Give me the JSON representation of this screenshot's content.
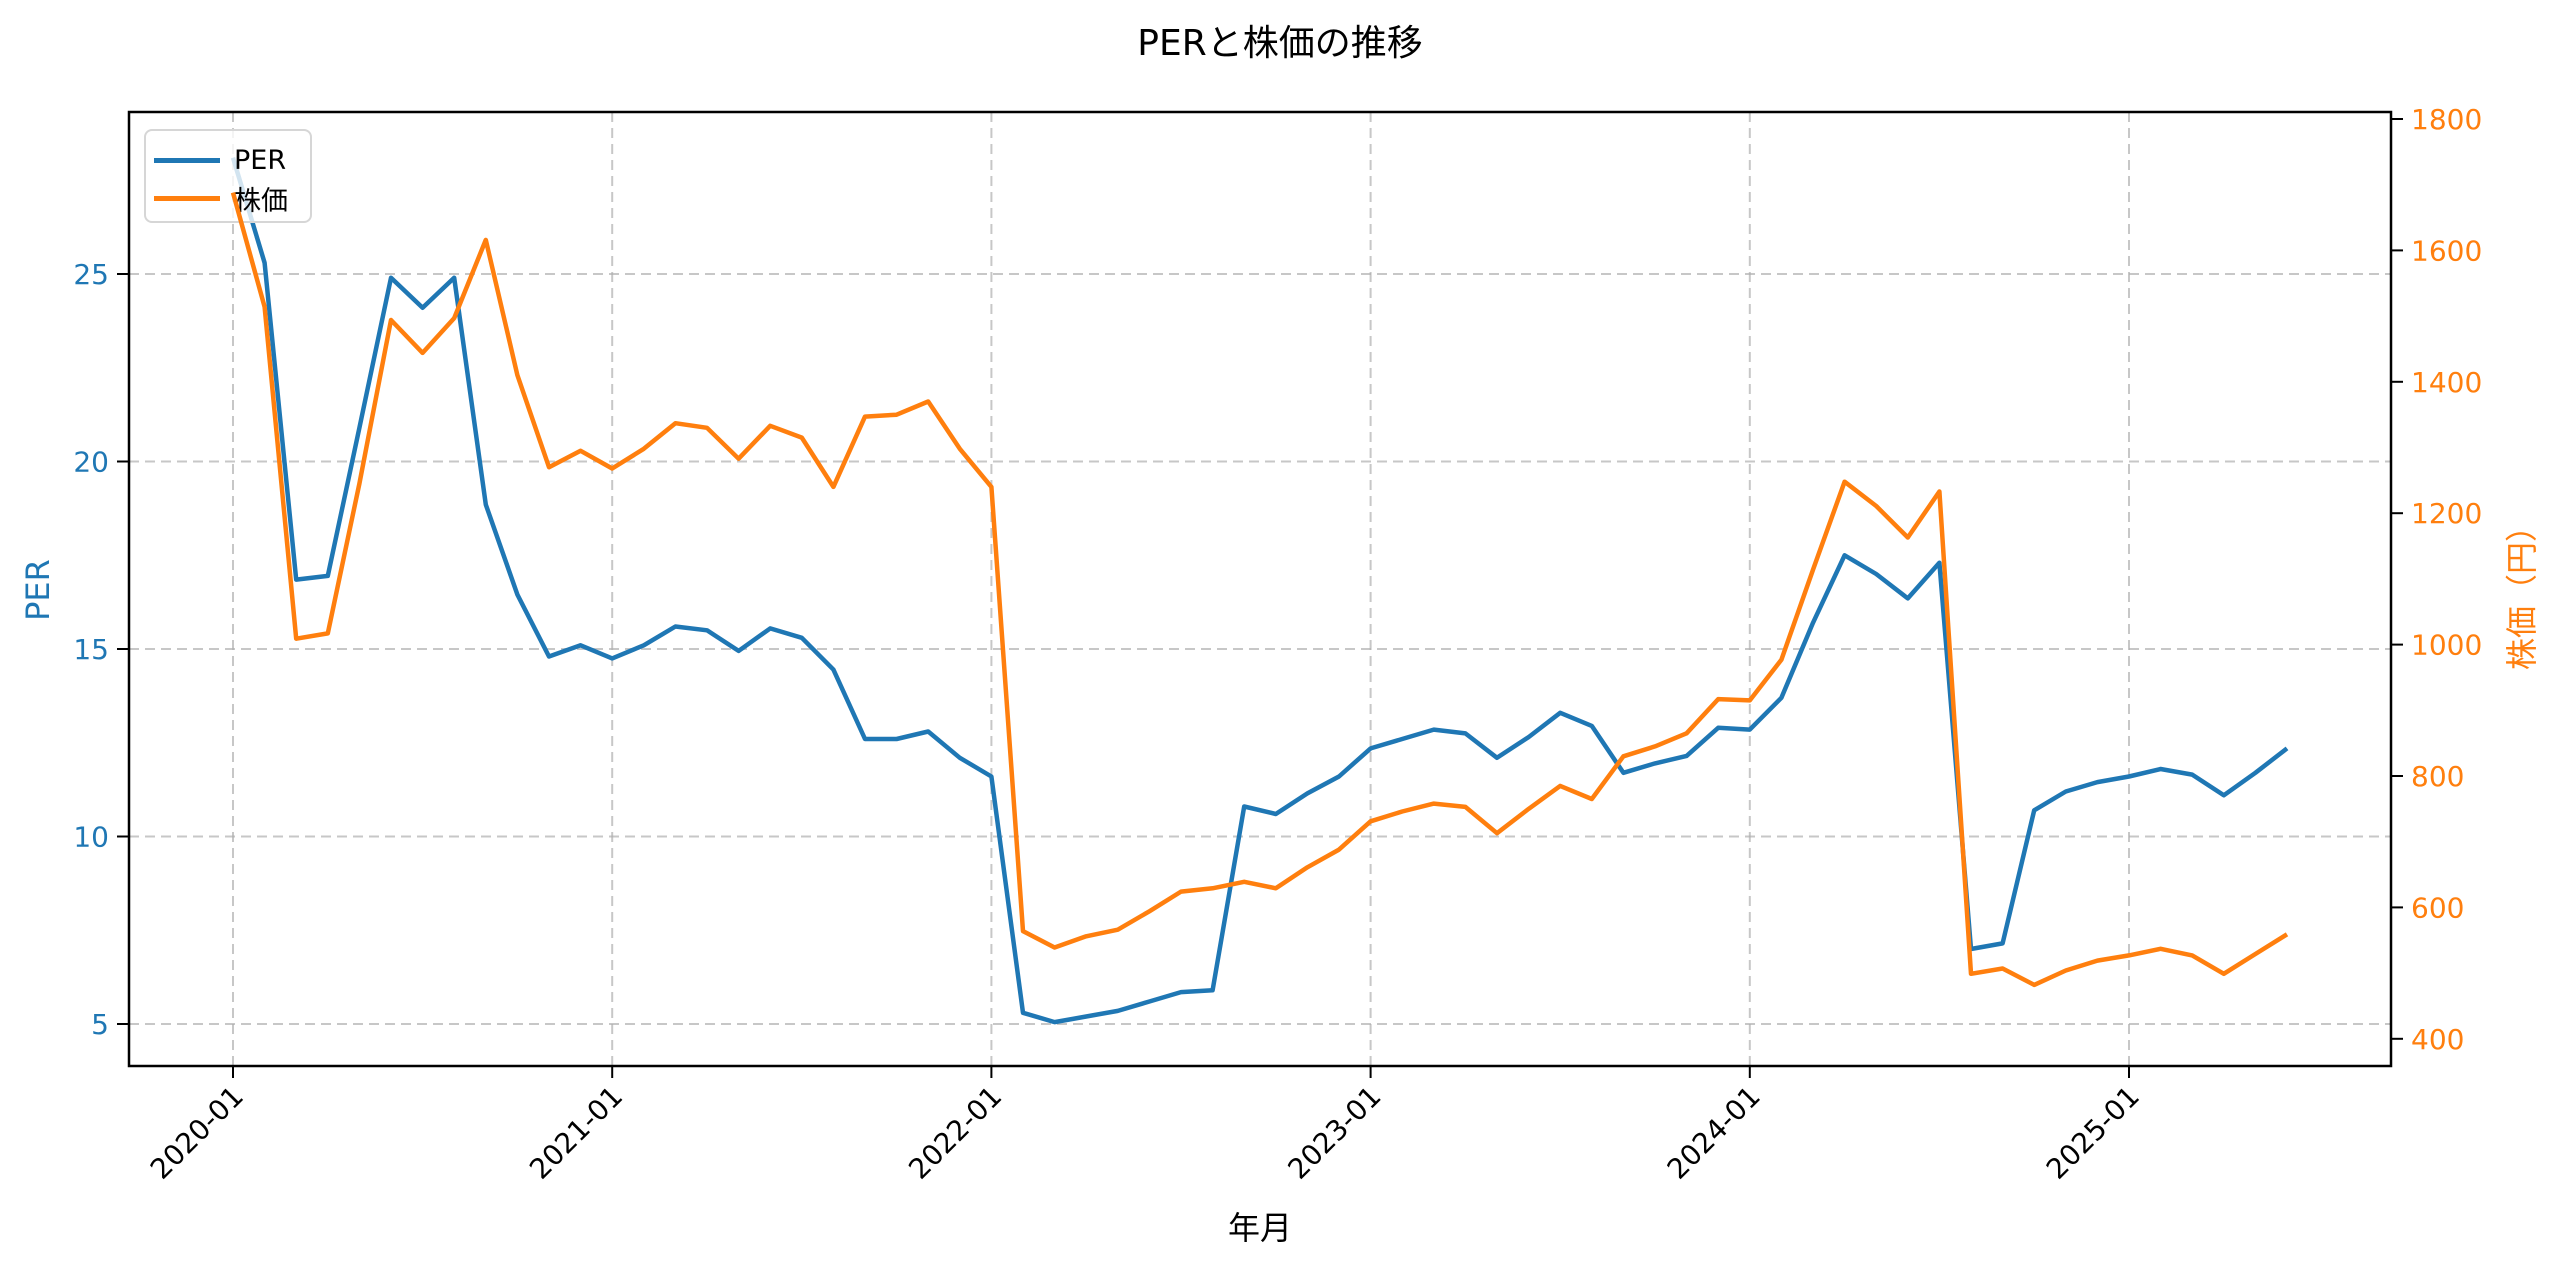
{
  "chart_data": {
    "type": "line",
    "title": "PERと株価の推移",
    "xlabel": "年月",
    "ylabel_left": "PER",
    "ylabel_right": "株価（円）",
    "x_tick_labels": [
      "2020-01",
      "2021-01",
      "2022-01",
      "2023-01",
      "2024-01",
      "2025-01"
    ],
    "y_left_ticks": [
      5,
      10,
      15,
      20,
      25
    ],
    "y_right_ticks": [
      400,
      600,
      800,
      1000,
      1200,
      1400,
      1600,
      1800
    ],
    "y_left_range": [
      3.88,
      29.32
    ],
    "y_right_range": [
      358.6,
      1810.7
    ],
    "grid": true,
    "legend_position": "upper left",
    "x": [
      "2020-01",
      "2020-02",
      "2020-03",
      "2020-04",
      "2020-05",
      "2020-06",
      "2020-07",
      "2020-08",
      "2020-09",
      "2020-10",
      "2020-11",
      "2020-12",
      "2021-01",
      "2021-02",
      "2021-03",
      "2021-04",
      "2021-05",
      "2021-06",
      "2021-07",
      "2021-08",
      "2021-09",
      "2021-10",
      "2021-11",
      "2021-12",
      "2022-01",
      "2022-02",
      "2022-03",
      "2022-04",
      "2022-05",
      "2022-06",
      "2022-07",
      "2022-08",
      "2022-09",
      "2022-10",
      "2022-11",
      "2022-12",
      "2023-01",
      "2023-02",
      "2023-03",
      "2023-04",
      "2023-05",
      "2023-06",
      "2023-07",
      "2023-08",
      "2023-09",
      "2023-10",
      "2023-11",
      "2023-12",
      "2024-01",
      "2024-02",
      "2024-03",
      "2024-04",
      "2024-05",
      "2024-06",
      "2024-07",
      "2024-08",
      "2024-09",
      "2024-10",
      "2024-11",
      "2024-12",
      "2025-01",
      "2025-02",
      "2025-03",
      "2025-04",
      "2025-05",
      "2025-06"
    ],
    "series": [
      {
        "name": "PER",
        "axis": "left",
        "color": "#1f77b4",
        "values": [
          28.1,
          25.3,
          16.85,
          16.95,
          20.9,
          24.9,
          24.1,
          24.9,
          18.85,
          16.45,
          14.8,
          15.1,
          14.75,
          15.1,
          15.6,
          15.5,
          14.95,
          15.55,
          15.3,
          14.45,
          12.6,
          12.6,
          12.8,
          12.1,
          11.6,
          5.3,
          5.05,
          5.2,
          5.35,
          5.6,
          5.85,
          5.9,
          10.8,
          10.6,
          11.15,
          11.6,
          12.35,
          12.6,
          12.85,
          12.75,
          12.1,
          12.65,
          13.3,
          12.95,
          11.7,
          11.95,
          12.15,
          12.9,
          12.85,
          13.7,
          15.7,
          17.5,
          17.0,
          16.35,
          17.3,
          7.0,
          7.15,
          10.7,
          11.2,
          11.45,
          11.6,
          11.8,
          11.65,
          11.1,
          11.7,
          12.35
        ]
      },
      {
        "name": "株価",
        "axis": "right",
        "color": "#ff7f0e",
        "values": [
          1688,
          1514,
          1009,
          1017,
          1245,
          1494,
          1444,
          1497,
          1616,
          1410,
          1270,
          1295,
          1268,
          1298,
          1337,
          1330,
          1283,
          1333,
          1315,
          1240,
          1347,
          1350,
          1370,
          1298,
          1240,
          564,
          539,
          556,
          566,
          594,
          624,
          629,
          639,
          629,
          661,
          688,
          731,
          746,
          758,
          753,
          713,
          750,
          785,
          765,
          830,
          845,
          865,
          917,
          915,
          977,
          1114,
          1248,
          1211,
          1163,
          1233,
          499,
          507,
          482,
          504,
          519,
          527,
          537,
          527,
          499,
          529,
          559
        ]
      }
    ]
  },
  "legend": {
    "items": [
      {
        "label": "PER",
        "color": "#1f77b4"
      },
      {
        "label": "株価",
        "color": "#ff7f0e"
      }
    ]
  },
  "colors": {
    "left_axis": "#1f77b4",
    "right_axis": "#ff7f0e",
    "grid": "#b0b0b0",
    "axes": "#000000"
  }
}
